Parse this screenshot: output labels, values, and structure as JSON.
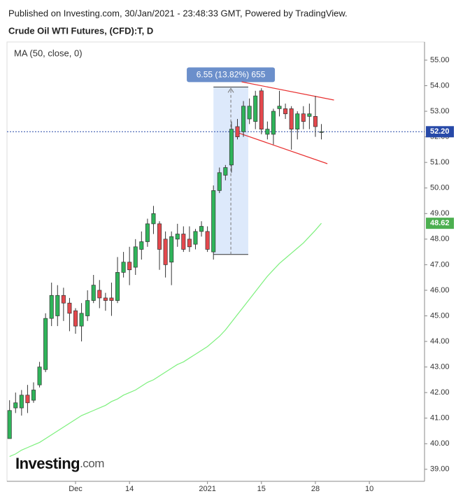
{
  "header": "Published on Investing.com, 30/Jan/2021 - 23:48:33 GMT, Powered by TradingView.",
  "logo": {
    "name": "Investing",
    "suffix": ".com"
  },
  "chart_data": {
    "type": "candlestick",
    "title": "Crude Oil WTI Futures, (CFD):T, D",
    "up_color": "#2fb45a",
    "down_color": "#e5484d",
    "ylim": [
      38.53,
      55.71
    ],
    "yticks": [
      {
        "value": 39,
        "label": "39.00"
      },
      {
        "value": 40,
        "label": "40.00"
      },
      {
        "value": 41,
        "label": "41.00"
      },
      {
        "value": 42,
        "label": "42.00"
      },
      {
        "value": 43,
        "label": "43.00"
      },
      {
        "value": 44,
        "label": "44.00"
      },
      {
        "value": 45,
        "label": "45.00"
      },
      {
        "value": 46,
        "label": "46.00"
      },
      {
        "value": 47,
        "label": "47.00"
      },
      {
        "value": 48,
        "label": "48.00"
      },
      {
        "value": 49,
        "label": "49.00"
      },
      {
        "value": 50,
        "label": "50.00"
      },
      {
        "value": 51,
        "label": "51.00"
      },
      {
        "value": 52,
        "label": "52.00"
      },
      {
        "value": 53,
        "label": "53.00"
      },
      {
        "value": 54,
        "label": "54.00"
      },
      {
        "value": 55,
        "label": "55.00"
      }
    ],
    "xlim": [
      -0.43,
      69.2
    ],
    "xticks": [
      {
        "value": 11,
        "label": "Dec"
      },
      {
        "value": 20,
        "label": "14"
      },
      {
        "value": 33,
        "label": "2021"
      },
      {
        "value": 42,
        "label": "15"
      },
      {
        "value": 51,
        "label": "28"
      },
      {
        "value": 60,
        "label": "10"
      }
    ],
    "candles": [
      {
        "open": 40.2,
        "high": 41.7,
        "low": 40.2,
        "close": 41.3
      },
      {
        "open": 41.4,
        "high": 42.0,
        "low": 41.2,
        "close": 41.6
      },
      {
        "open": 41.4,
        "high": 42.1,
        "low": 41.1,
        "close": 41.9
      },
      {
        "open": 41.9,
        "high": 42.3,
        "low": 41.2,
        "close": 41.6
      },
      {
        "open": 41.7,
        "high": 42.4,
        "low": 41.6,
        "close": 42.1
      },
      {
        "open": 42.3,
        "high": 43.2,
        "low": 42.2,
        "close": 43.0
      },
      {
        "open": 42.9,
        "high": 45.1,
        "low": 42.8,
        "close": 44.9
      },
      {
        "open": 44.9,
        "high": 46.3,
        "low": 44.6,
        "close": 45.8
      },
      {
        "open": 45.0,
        "high": 46.2,
        "low": 44.6,
        "close": 45.8
      },
      {
        "open": 45.8,
        "high": 46.1,
        "low": 44.8,
        "close": 45.5
      },
      {
        "open": 45.5,
        "high": 45.7,
        "low": 44.4,
        "close": 45.1
      },
      {
        "open": 45.2,
        "high": 45.3,
        "low": 44.3,
        "close": 44.6
      },
      {
        "open": 44.6,
        "high": 45.5,
        "low": 44.0,
        "close": 45.1
      },
      {
        "open": 45.0,
        "high": 46.0,
        "low": 44.8,
        "close": 45.6
      },
      {
        "open": 45.6,
        "high": 46.6,
        "low": 45.5,
        "close": 46.2
      },
      {
        "open": 46.0,
        "high": 46.4,
        "low": 45.3,
        "close": 45.7
      },
      {
        "open": 45.7,
        "high": 45.9,
        "low": 45.2,
        "close": 45.6
      },
      {
        "open": 45.7,
        "high": 46.3,
        "low": 45.0,
        "close": 45.6
      },
      {
        "open": 45.6,
        "high": 47.3,
        "low": 45.5,
        "close": 46.7
      },
      {
        "open": 46.7,
        "high": 47.5,
        "low": 46.5,
        "close": 47.1
      },
      {
        "open": 47.1,
        "high": 47.7,
        "low": 46.2,
        "close": 46.8
      },
      {
        "open": 46.9,
        "high": 48.0,
        "low": 46.6,
        "close": 47.7
      },
      {
        "open": 47.6,
        "high": 48.3,
        "low": 47.2,
        "close": 47.9
      },
      {
        "open": 47.9,
        "high": 48.8,
        "low": 47.7,
        "close": 48.6
      },
      {
        "open": 48.6,
        "high": 49.3,
        "low": 48.2,
        "close": 49.0
      },
      {
        "open": 48.6,
        "high": 48.7,
        "low": 46.8,
        "close": 47.6
      },
      {
        "open": 48.0,
        "high": 48.3,
        "low": 46.5,
        "close": 47.0
      },
      {
        "open": 47.1,
        "high": 48.3,
        "low": 46.2,
        "close": 48.1
      },
      {
        "open": 48.0,
        "high": 48.6,
        "low": 47.7,
        "close": 48.2
      },
      {
        "open": 48.2,
        "high": 48.5,
        "low": 47.5,
        "close": 47.6
      },
      {
        "open": 48.0,
        "high": 48.5,
        "low": 47.5,
        "close": 47.7
      },
      {
        "open": 47.8,
        "high": 48.4,
        "low": 47.6,
        "close": 48.3
      },
      {
        "open": 48.3,
        "high": 48.7,
        "low": 48.1,
        "close": 48.5
      },
      {
        "open": 48.3,
        "high": 48.5,
        "low": 47.5,
        "close": 47.6
      },
      {
        "open": 47.5,
        "high": 50.1,
        "low": 47.2,
        "close": 49.9
      },
      {
        "open": 49.9,
        "high": 50.8,
        "low": 49.8,
        "close": 50.6
      },
      {
        "open": 50.5,
        "high": 50.9,
        "low": 50.3,
        "close": 50.8
      },
      {
        "open": 50.9,
        "high": 52.6,
        "low": 50.6,
        "close": 52.3
      },
      {
        "open": 52.4,
        "high": 52.7,
        "low": 51.9,
        "close": 52.0
      },
      {
        "open": 52.2,
        "high": 53.4,
        "low": 52.0,
        "close": 53.2
      },
      {
        "open": 52.7,
        "high": 53.5,
        "low": 52.5,
        "close": 53.2
      },
      {
        "open": 52.6,
        "high": 53.8,
        "low": 52.3,
        "close": 53.6
      },
      {
        "open": 53.8,
        "high": 53.9,
        "low": 52.1,
        "close": 52.3
      },
      {
        "open": 52.1,
        "high": 52.6,
        "low": 51.9,
        "close": 52.3
      },
      {
        "open": 52.1,
        "high": 53.1,
        "low": 51.7,
        "close": 53.0
      },
      {
        "open": 53.1,
        "high": 53.8,
        "low": 52.8,
        "close": 53.2
      },
      {
        "open": 53.1,
        "high": 53.3,
        "low": 52.7,
        "close": 52.9
      },
      {
        "open": 53.1,
        "high": 53.2,
        "low": 51.5,
        "close": 52.3
      },
      {
        "open": 52.3,
        "high": 53.0,
        "low": 51.9,
        "close": 52.9
      },
      {
        "open": 52.9,
        "high": 53.2,
        "low": 52.3,
        "close": 52.6
      },
      {
        "open": 52.8,
        "high": 53.3,
        "low": 52.3,
        "close": 52.9
      },
      {
        "open": 52.8,
        "high": 53.6,
        "low": 52.0,
        "close": 52.4
      },
      {
        "open": 52.2,
        "high": 52.5,
        "low": 51.9,
        "close": 52.2
      }
    ],
    "series": [
      {
        "name": "MA (50, close, 0)",
        "color": "#7df07d",
        "values": [
          39.5,
          39.6,
          39.75,
          39.85,
          39.95,
          40.05,
          40.2,
          40.35,
          40.5,
          40.65,
          40.8,
          40.95,
          41.1,
          41.2,
          41.3,
          41.4,
          41.5,
          41.65,
          41.75,
          41.9,
          42.0,
          42.1,
          42.25,
          42.4,
          42.5,
          42.65,
          42.8,
          42.95,
          43.1,
          43.2,
          43.35,
          43.5,
          43.65,
          43.8,
          44.0,
          44.2,
          44.45,
          44.75,
          45.05,
          45.35,
          45.65,
          45.95,
          46.25,
          46.55,
          46.8,
          47.05,
          47.25,
          47.45,
          47.65,
          47.85,
          48.1,
          48.35,
          48.62
        ]
      }
    ],
    "last_price": {
      "value": 52.2,
      "label": "52.20",
      "color": "#2749a8"
    },
    "measure": {
      "label": "6.55 (13.82%) 655",
      "from": 47.4,
      "to": 53.95,
      "x_start": 34,
      "x_end": 39.8
    },
    "trendlines": [
      {
        "color": "#e83030",
        "points": [
          [
            38.7,
            54.15
          ],
          [
            54.1,
            53.44
          ]
        ]
      },
      {
        "color": "#e83030",
        "points": [
          [
            38.1,
            52.16
          ],
          [
            53.0,
            50.95
          ]
        ]
      }
    ]
  }
}
